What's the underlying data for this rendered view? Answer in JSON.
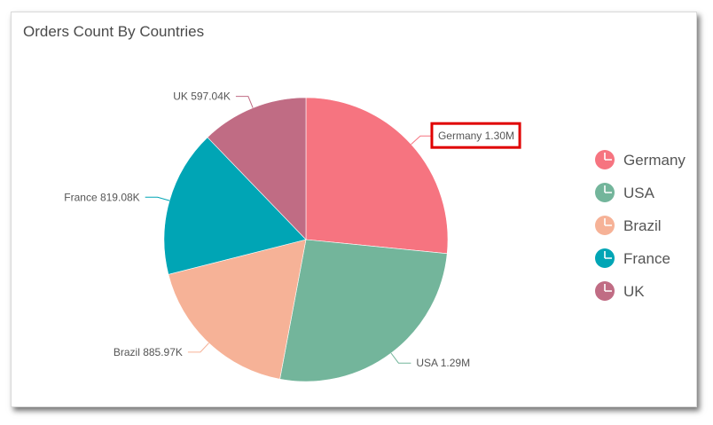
{
  "chart_data": {
    "type": "pie",
    "title": "Orders Count By Countries",
    "categories": [
      "Germany",
      "USA",
      "Brazil",
      "France",
      "UK"
    ],
    "values": [
      1300000,
      1290000,
      885970,
      819080,
      597040
    ],
    "data_labels": [
      "Germany 1.30M",
      "USA 1.29M",
      "Brazil 885.97K",
      "France 819.08K",
      "UK 597.04K"
    ],
    "colors": [
      "#f67480",
      "#73b59b",
      "#f6b297",
      "#00a5b5",
      "#c06c84"
    ],
    "highlighted_label": "Germany",
    "legend_placement": "right"
  }
}
